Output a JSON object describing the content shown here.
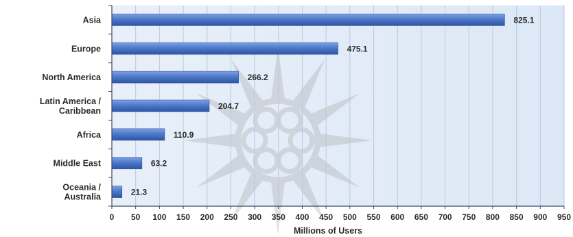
{
  "chart_data": {
    "type": "bar",
    "orientation": "horizontal",
    "categories": [
      "Asia",
      "Europe",
      "North America",
      "Latin America / Caribbean",
      "Africa",
      "Middle East",
      "Oceania / Australia"
    ],
    "category_lines": [
      [
        "Asia"
      ],
      [
        "Europe"
      ],
      [
        "North America"
      ],
      [
        "Latin America /",
        "Caribbean"
      ],
      [
        "Africa"
      ],
      [
        "Middle East"
      ],
      [
        "Oceania  /",
        "Australia"
      ]
    ],
    "values": [
      825.1,
      475.1,
      266.2,
      204.7,
      110.9,
      63.2,
      21.3
    ],
    "value_labels": [
      "825.1",
      "475.1",
      "266.2",
      "204.7",
      "110.9",
      "63.2",
      "21.3"
    ],
    "xlabel": "Millions of Users",
    "ylabel": "",
    "xlim": [
      0,
      950
    ],
    "xticks": [
      0,
      50,
      100,
      150,
      200,
      250,
      300,
      350,
      400,
      450,
      500,
      550,
      600,
      650,
      700,
      750,
      800,
      850,
      900,
      950
    ],
    "grid": "vertical",
    "legend": "none"
  },
  "colors": {
    "bar_fill": "#4e79c9",
    "bar_fill_light": "#7ea1e4",
    "bar_fill_dark": "#2d55a3",
    "plot_bg": "#dde8f6",
    "grid": "#b8c9e0",
    "axis": "#3a4a66",
    "text": "#2b2b2b",
    "watermark": "#9a9a9a"
  }
}
